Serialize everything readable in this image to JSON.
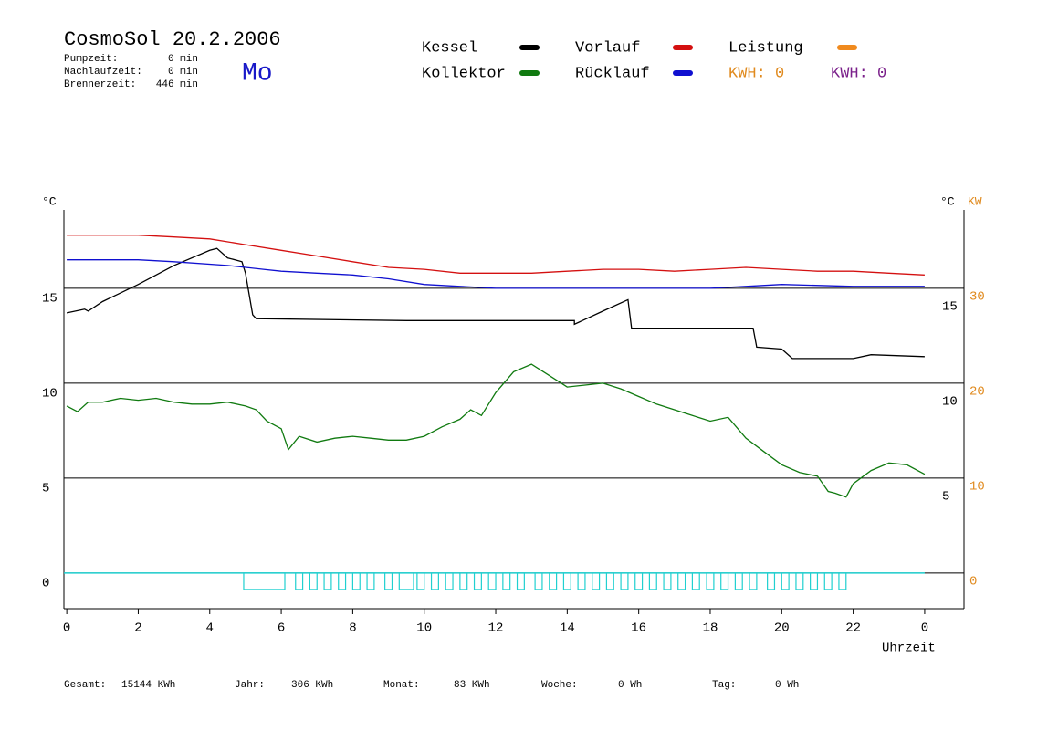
{
  "chart_data": {
    "type": "line",
    "title": "CosmoSol 20.2.2006",
    "weekday": "Mo",
    "stats": [
      {
        "label": "Pumpzeit:",
        "value": "0 min"
      },
      {
        "label": "Nachlaufzeit:",
        "value": "0 min"
      },
      {
        "label": "Brennerzeit:",
        "value": "446 min"
      }
    ],
    "energy": [
      {
        "label": "KWH: 0",
        "color": "#e08a1e"
      },
      {
        "label": "KWH: 0",
        "color": "#7a1f8a"
      }
    ],
    "totals": [
      {
        "label": "Gesamt:",
        "value": "15144 KWh"
      },
      {
        "label": "Jahr:",
        "value": "306 KWh"
      },
      {
        "label": "Monat:",
        "value": "83 KWh"
      },
      {
        "label": "Woche:",
        "value": "0 Wh"
      },
      {
        "label": "Tag:",
        "value": "0 Wh"
      }
    ],
    "ylabel": "°C",
    "y_right_label": "°C",
    "y2label": "KW",
    "xlabel": "Uhrzeit",
    "xlim": [
      -0.08,
      25.1
    ],
    "xticks": [
      0,
      2,
      4,
      6,
      8,
      10,
      12,
      14,
      16,
      18,
      20,
      22,
      {
        "value": 24,
        "label": "0"
      }
    ],
    "ylim": [
      -1.88,
      19.13
    ],
    "yticks": [
      0,
      5,
      10,
      15
    ],
    "yticks_right": [
      5,
      10,
      15
    ],
    "y2lim": [
      -3.76,
      38.26
    ],
    "y2ticks": [
      0,
      10,
      20,
      30
    ],
    "y2color": "#e08a1e",
    "grid": true,
    "series": [
      {
        "name": "Kessel",
        "color": "#000000",
        "x": [
          0,
          0.5,
          0.6,
          1,
          2,
          3,
          4,
          4.2,
          4.5,
          4.9,
          5.0,
          5.2,
          5.3,
          9.5,
          14.2,
          14.2,
          15.0,
          15.7,
          15.8,
          19.2,
          19.3,
          20.0,
          20.3,
          22.0,
          22.5,
          24
        ],
        "values": [
          13.7,
          13.9,
          13.8,
          14.3,
          15.2,
          16.2,
          17.0,
          17.1,
          16.6,
          16.4,
          15.8,
          13.6,
          13.4,
          13.3,
          13.3,
          13.1,
          13.8,
          14.4,
          12.9,
          12.9,
          11.9,
          11.8,
          11.3,
          11.3,
          11.5,
          11.4
        ]
      },
      {
        "name": "Kollektor",
        "color": "#107a10",
        "x": [
          0,
          0.3,
          0.6,
          1,
          1.5,
          2,
          2.5,
          3,
          3.5,
          4,
          4.5,
          5,
          5.3,
          5.6,
          6,
          6.2,
          6.5,
          7,
          7.5,
          8,
          8.5,
          9,
          9.5,
          10,
          10.5,
          11,
          11.3,
          11.6,
          12,
          12.5,
          13,
          13.5,
          14,
          14.5,
          15,
          15.5,
          16,
          16.5,
          17,
          17.5,
          18,
          18.5,
          19,
          19.5,
          20,
          20.5,
          21,
          21.3,
          21.5,
          21.8,
          22,
          22.5,
          23,
          23.5,
          24
        ],
        "values": [
          8.8,
          8.5,
          9.0,
          9.0,
          9.2,
          9.1,
          9.2,
          9.0,
          8.9,
          8.9,
          9.0,
          8.8,
          8.6,
          8.0,
          7.6,
          6.5,
          7.2,
          6.9,
          7.1,
          7.2,
          7.1,
          7.0,
          7.0,
          7.2,
          7.7,
          8.1,
          8.6,
          8.3,
          9.5,
          10.6,
          11.0,
          10.4,
          9.8,
          9.9,
          10.0,
          9.7,
          9.3,
          8.9,
          8.6,
          8.3,
          8.0,
          8.2,
          7.1,
          6.4,
          5.7,
          5.3,
          5.1,
          4.3,
          4.2,
          4.0,
          4.7,
          5.4,
          5.8,
          5.7,
          5.2
        ]
      },
      {
        "name": "Vorlauf",
        "color": "#d41010",
        "x": [
          0,
          2,
          3,
          4,
          5,
          6,
          7,
          8,
          9,
          10,
          11,
          12,
          13,
          14,
          15,
          16,
          17,
          18,
          19,
          20,
          21,
          22,
          23,
          24
        ],
        "values": [
          17.8,
          17.8,
          17.7,
          17.6,
          17.3,
          17.0,
          16.7,
          16.4,
          16.1,
          16.0,
          15.8,
          15.8,
          15.8,
          15.9,
          16.0,
          16.0,
          15.9,
          16.0,
          16.1,
          16.0,
          15.9,
          15.9,
          15.8,
          15.7
        ]
      },
      {
        "name": "Rücklauf",
        "color": "#1010d0",
        "x": [
          0,
          2,
          3,
          4.5,
          5.5,
          6,
          7,
          8,
          9,
          10,
          11,
          12,
          14,
          16,
          18,
          19,
          20,
          22,
          24
        ],
        "values": [
          16.5,
          16.5,
          16.4,
          16.2,
          16.0,
          15.9,
          15.8,
          15.7,
          15.5,
          15.2,
          15.1,
          15.0,
          15.0,
          15.0,
          15.0,
          15.1,
          15.2,
          15.1,
          15.1
        ]
      },
      {
        "name": "Leistung",
        "color": "#f08a1e",
        "x": [],
        "values": []
      }
    ],
    "pump": {
      "color": "#20d0d0",
      "intervals": [
        [
          4.95,
          6.1
        ],
        [
          6.4,
          6.6
        ],
        [
          6.8,
          7.0
        ],
        [
          7.2,
          7.4
        ],
        [
          7.6,
          7.8
        ],
        [
          8.0,
          8.2
        ],
        [
          8.4,
          8.6
        ],
        [
          8.9,
          9.1
        ],
        [
          9.3,
          9.7
        ],
        [
          9.8,
          10.0
        ],
        [
          10.2,
          10.4
        ],
        [
          10.6,
          10.8
        ],
        [
          11.0,
          11.2
        ],
        [
          11.4,
          11.6
        ],
        [
          11.8,
          12.0
        ],
        [
          12.2,
          12.4
        ],
        [
          12.6,
          12.8
        ],
        [
          13.1,
          13.3
        ],
        [
          13.5,
          13.7
        ],
        [
          13.9,
          14.1
        ],
        [
          14.3,
          14.5
        ],
        [
          14.7,
          14.9
        ],
        [
          15.1,
          15.3
        ],
        [
          15.5,
          15.7
        ],
        [
          15.9,
          16.1
        ],
        [
          16.3,
          16.5
        ],
        [
          16.7,
          16.9
        ],
        [
          17.1,
          17.3
        ],
        [
          17.5,
          17.7
        ],
        [
          17.9,
          18.1
        ],
        [
          18.3,
          18.5
        ],
        [
          18.7,
          18.9
        ],
        [
          19.1,
          19.3
        ],
        [
          19.6,
          19.8
        ],
        [
          20.0,
          20.2
        ],
        [
          20.4,
          20.6
        ],
        [
          20.8,
          21.0
        ],
        [
          21.2,
          21.4
        ],
        [
          21.6,
          21.8
        ]
      ]
    }
  }
}
